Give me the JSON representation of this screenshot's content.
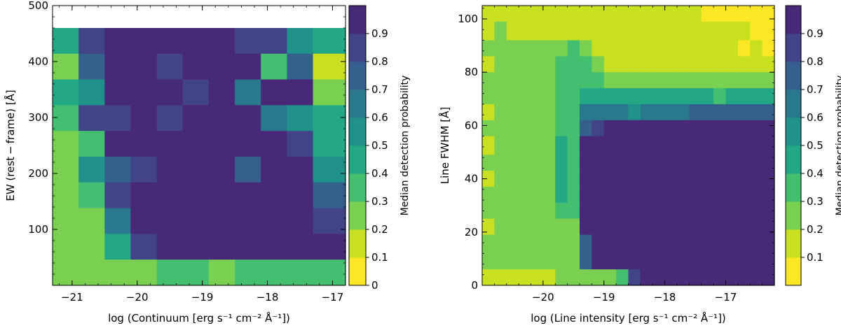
{
  "palette": {
    "0.05": "#fde725",
    "0.15": "#c8e020",
    "0.25": "#7ad151",
    "0.35": "#44bf70",
    "0.45": "#22a884",
    "0.55": "#21918c",
    "0.65": "#2a788e",
    "0.75": "#355f8d",
    "0.85": "#414487",
    "0.95": "#482878"
  },
  "chart_data": [
    {
      "type": "heatmap",
      "name": "left",
      "xlabel": "log (Continuum [erg s⁻¹ cm⁻² Å⁻¹])",
      "ylabel": "EW (rest − frame) [Å]",
      "xlim": [
        -21.3,
        -16.8
      ],
      "ylim": [
        0,
        500
      ],
      "xticks": [
        -21,
        -20,
        -19,
        -18,
        -17
      ],
      "xtick_labels": [
        "−21",
        "−20",
        "−19",
        "−18",
        "−17"
      ],
      "yticks": [
        100,
        200,
        300,
        400,
        500
      ],
      "ytick_labels": [
        "100",
        "200",
        "300",
        "400",
        "500"
      ],
      "x_edges": [
        -21.3,
        -20.9,
        -20.5,
        -20.1,
        -19.7,
        -19.3,
        -18.9,
        -18.5,
        -18.1,
        -17.7,
        -17.3,
        -16.8
      ],
      "y_edges": [
        0,
        46,
        92,
        138,
        184,
        230,
        276,
        322,
        368,
        414,
        460,
        500
      ],
      "values_top_to_bottom": [
        [
          0.45,
          0.85,
          0.95,
          0.95,
          0.95,
          0.95,
          0.95,
          0.85,
          0.85,
          0.55,
          0.45
        ],
        [
          0.25,
          0.75,
          0.95,
          0.95,
          0.85,
          0.95,
          0.95,
          0.95,
          0.35,
          0.75,
          0.15
        ],
        [
          0.45,
          0.55,
          0.95,
          0.95,
          0.95,
          0.85,
          0.95,
          0.65,
          0.95,
          0.95,
          0.25
        ],
        [
          0.35,
          0.85,
          0.85,
          0.95,
          0.85,
          0.95,
          0.95,
          0.95,
          0.65,
          0.55,
          0.45
        ],
        [
          0.25,
          0.35,
          0.95,
          0.95,
          0.95,
          0.95,
          0.95,
          0.95,
          0.95,
          0.85,
          0.45
        ],
        [
          0.25,
          0.55,
          0.75,
          0.85,
          0.95,
          0.95,
          0.95,
          0.75,
          0.95,
          0.95,
          0.55
        ],
        [
          0.25,
          0.35,
          0.85,
          0.95,
          0.95,
          0.95,
          0.95,
          0.95,
          0.95,
          0.95,
          0.75
        ],
        [
          0.25,
          0.25,
          0.65,
          0.95,
          0.95,
          0.95,
          0.95,
          0.95,
          0.95,
          0.95,
          0.85
        ],
        [
          0.25,
          0.25,
          0.45,
          0.85,
          0.95,
          0.95,
          0.95,
          0.95,
          0.95,
          0.95,
          0.95
        ],
        [
          0.25,
          0.25,
          0.25,
          0.25,
          0.35,
          0.35,
          0.25,
          0.35,
          0.35,
          0.35,
          0.35
        ]
      ],
      "colorbar": {
        "label": "Median detection probability",
        "range": [
          0,
          1
        ],
        "ticks": [
          0,
          0.1,
          0.2,
          0.3,
          0.4,
          0.5,
          0.6,
          0.7,
          0.8,
          0.9
        ],
        "tick_labels": [
          "0",
          "0.1",
          "0.2",
          "0.3",
          "0.4",
          "0.5",
          "0.6",
          "0.7",
          "0.8",
          "0.9"
        ]
      }
    },
    {
      "type": "heatmap",
      "name": "right",
      "xlabel": "log (Line intensity [erg s⁻¹ cm⁻² Å⁻¹])",
      "ylabel": "Line FWHM [Å]",
      "xlim": [
        -21,
        -16.2
      ],
      "ylim": [
        0,
        105
      ],
      "xticks": [
        -20,
        -19,
        -18,
        -17
      ],
      "xtick_labels": [
        "−20",
        "−19",
        "−18",
        "−17"
      ],
      "yticks": [
        0,
        20,
        40,
        60,
        80,
        100
      ],
      "ytick_labels": [
        "0",
        "20",
        "40",
        "60",
        "80",
        "100"
      ],
      "x_edges": [
        -21,
        -20.8,
        -20.6,
        -20.4,
        -20.2,
        -20,
        -19.8,
        -19.6,
        -19.4,
        -19.2,
        -19,
        -18.8,
        -18.6,
        -18.4,
        -18.2,
        -18,
        -17.8,
        -17.6,
        -17.4,
        -17.2,
        -17,
        -16.8,
        -16.6,
        -16.4,
        -16.2
      ],
      "y_edges": [
        0,
        6,
        13,
        19,
        25,
        31,
        37,
        43,
        49,
        56,
        62,
        68,
        74,
        80,
        86,
        92,
        99,
        105
      ],
      "values_top_to_bottom": [
        [
          0.15,
          0.15,
          0.15,
          0.15,
          0.15,
          0.15,
          0.15,
          0.15,
          0.15,
          0.15,
          0.15,
          0.15,
          0.15,
          0.15,
          0.15,
          0.15,
          0.15,
          0.15,
          0.05,
          0.05,
          0.05,
          0.05,
          0.05,
          0.05
        ],
        [
          0.15,
          0.25,
          0.15,
          0.15,
          0.15,
          0.15,
          0.15,
          0.15,
          0.15,
          0.15,
          0.15,
          0.15,
          0.15,
          0.15,
          0.15,
          0.15,
          0.15,
          0.15,
          0.15,
          0.15,
          0.15,
          0.15,
          0.05,
          0.05
        ],
        [
          0.25,
          0.25,
          0.25,
          0.25,
          0.25,
          0.25,
          0.25,
          0.35,
          0.25,
          0.15,
          0.15,
          0.15,
          0.15,
          0.15,
          0.15,
          0.15,
          0.15,
          0.15,
          0.15,
          0.15,
          0.15,
          0.05,
          0.15,
          0.05
        ],
        [
          0.15,
          0.25,
          0.25,
          0.25,
          0.25,
          0.25,
          0.35,
          0.35,
          0.35,
          0.25,
          0.15,
          0.15,
          0.15,
          0.15,
          0.15,
          0.15,
          0.15,
          0.15,
          0.15,
          0.15,
          0.15,
          0.15,
          0.15,
          0.15
        ],
        [
          0.25,
          0.25,
          0.25,
          0.25,
          0.25,
          0.25,
          0.35,
          0.35,
          0.35,
          0.35,
          0.25,
          0.25,
          0.25,
          0.25,
          0.25,
          0.25,
          0.25,
          0.25,
          0.25,
          0.25,
          0.25,
          0.25,
          0.25,
          0.25
        ],
        [
          0.25,
          0.25,
          0.25,
          0.25,
          0.25,
          0.25,
          0.35,
          0.35,
          0.45,
          0.45,
          0.45,
          0.45,
          0.45,
          0.45,
          0.45,
          0.45,
          0.45,
          0.45,
          0.45,
          0.35,
          0.45,
          0.45,
          0.45,
          0.45
        ],
        [
          0.15,
          0.25,
          0.25,
          0.25,
          0.25,
          0.25,
          0.35,
          0.35,
          0.65,
          0.65,
          0.65,
          0.65,
          0.55,
          0.65,
          0.65,
          0.65,
          0.65,
          0.75,
          0.75,
          0.75,
          0.75,
          0.75,
          0.75,
          0.75
        ],
        [
          0.25,
          0.25,
          0.25,
          0.25,
          0.25,
          0.25,
          0.35,
          0.35,
          0.75,
          0.85,
          0.95,
          0.95,
          0.95,
          0.95,
          0.95,
          0.95,
          0.95,
          0.95,
          0.95,
          0.95,
          0.95,
          0.95,
          0.95,
          0.95
        ],
        [
          0.15,
          0.25,
          0.25,
          0.25,
          0.25,
          0.25,
          0.45,
          0.35,
          0.95,
          0.95,
          0.95,
          0.95,
          0.95,
          0.95,
          0.95,
          0.95,
          0.95,
          0.95,
          0.95,
          0.95,
          0.95,
          0.95,
          0.95,
          0.95
        ],
        [
          0.25,
          0.25,
          0.25,
          0.25,
          0.25,
          0.25,
          0.45,
          0.35,
          0.95,
          0.95,
          0.95,
          0.95,
          0.95,
          0.95,
          0.95,
          0.95,
          0.95,
          0.95,
          0.95,
          0.95,
          0.95,
          0.95,
          0.95,
          0.95
        ],
        [
          0.15,
          0.25,
          0.25,
          0.25,
          0.25,
          0.25,
          0.45,
          0.35,
          0.95,
          0.95,
          0.95,
          0.95,
          0.95,
          0.95,
          0.95,
          0.95,
          0.95,
          0.95,
          0.95,
          0.95,
          0.95,
          0.95,
          0.95,
          0.95
        ],
        [
          0.25,
          0.25,
          0.25,
          0.25,
          0.25,
          0.25,
          0.45,
          0.35,
          0.95,
          0.95,
          0.95,
          0.95,
          0.95,
          0.95,
          0.95,
          0.95,
          0.95,
          0.95,
          0.95,
          0.95,
          0.95,
          0.95,
          0.95,
          0.95
        ],
        [
          0.25,
          0.25,
          0.25,
          0.25,
          0.25,
          0.25,
          0.35,
          0.35,
          0.95,
          0.95,
          0.95,
          0.95,
          0.95,
          0.95,
          0.95,
          0.95,
          0.95,
          0.95,
          0.95,
          0.95,
          0.95,
          0.95,
          0.95,
          0.95
        ],
        [
          0.15,
          0.25,
          0.25,
          0.25,
          0.25,
          0.25,
          0.25,
          0.25,
          0.95,
          0.95,
          0.95,
          0.95,
          0.95,
          0.95,
          0.95,
          0.95,
          0.95,
          0.95,
          0.95,
          0.95,
          0.95,
          0.95,
          0.95,
          0.95
        ],
        [
          0.25,
          0.25,
          0.25,
          0.25,
          0.25,
          0.25,
          0.25,
          0.25,
          0.75,
          0.95,
          0.95,
          0.95,
          0.95,
          0.95,
          0.95,
          0.95,
          0.95,
          0.95,
          0.95,
          0.95,
          0.95,
          0.95,
          0.95,
          0.95
        ],
        [
          0.25,
          0.25,
          0.25,
          0.25,
          0.25,
          0.25,
          0.25,
          0.25,
          0.75,
          0.95,
          0.95,
          0.95,
          0.95,
          0.95,
          0.95,
          0.95,
          0.95,
          0.95,
          0.95,
          0.95,
          0.95,
          0.95,
          0.95,
          0.95
        ],
        [
          0.15,
          0.15,
          0.15,
          0.15,
          0.15,
          0.15,
          0.25,
          0.25,
          0.25,
          0.25,
          0.25,
          0.35,
          0.85,
          0.95,
          0.95,
          0.95,
          0.95,
          0.95,
          0.95,
          0.95,
          0.95,
          0.95,
          0.95,
          0.95
        ]
      ],
      "colorbar": {
        "label": "Median detection probability",
        "range": [
          0,
          1
        ],
        "ticks": [
          0.1,
          0.2,
          0.3,
          0.4,
          0.5,
          0.6,
          0.7,
          0.8,
          0.9
        ],
        "tick_labels": [
          "0.1",
          "0.2",
          "0.3",
          "0.4",
          "0.5",
          "0.6",
          "0.7",
          "0.8",
          "0.9"
        ]
      }
    }
  ]
}
